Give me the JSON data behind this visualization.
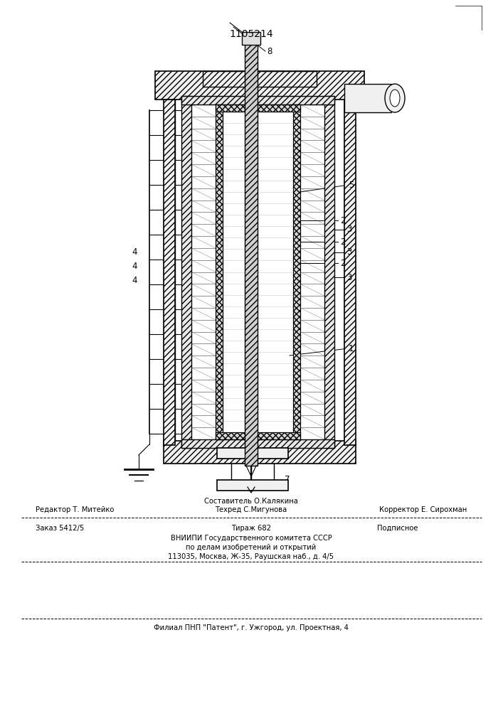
{
  "patent_number": "1105214",
  "bg": "#ffffff",
  "footer": {
    "l1_left": "Редактор Т. Митейко",
    "l1_mid_top": "Составитель О.Калякина",
    "l1_mid_bot": "Техред С.Мигунова",
    "l1_right": "Корректор Е. Сирохман",
    "l2_left": "Заказ 5412/5",
    "l2_mid": "Тираж 682",
    "l2_right": "Подписное",
    "l3_1": "ВНИИПИ Государственного комитета СССР",
    "l3_2": "по делам изобретений и открытий",
    "l3_3": "113035, Москва, Ж-35, Раушская наб., д. 4/5",
    "l4": "Филиал ПНП \"Патент\", г. Ужгород, ул. Проектная, 4"
  }
}
